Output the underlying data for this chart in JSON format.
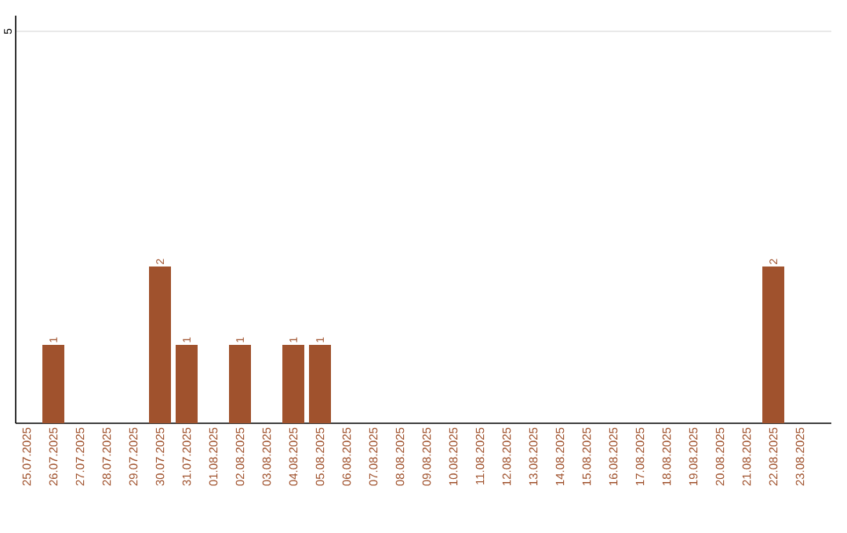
{
  "chart_data": {
    "type": "bar",
    "categories": [
      "25.07.2025",
      "26.07.2025",
      "27.07.2025",
      "28.07.2025",
      "29.07.2025",
      "30.07.2025",
      "31.07.2025",
      "01.08.2025",
      "02.08.2025",
      "03.08.2025",
      "04.08.2025",
      "05.08.2025",
      "06.08.2025",
      "07.08.2025",
      "08.08.2025",
      "09.08.2025",
      "10.08.2025",
      "11.08.2025",
      "12.08.2025",
      "13.08.2025",
      "14.08.2025",
      "15.08.2025",
      "16.08.2025",
      "17.08.2025",
      "18.08.2025",
      "19.08.2025",
      "20.08.2025",
      "21.08.2025",
      "22.08.2025",
      "23.08.2025"
    ],
    "values": [
      0,
      1,
      0,
      0,
      0,
      2,
      1,
      0,
      1,
      0,
      1,
      1,
      0,
      0,
      0,
      0,
      0,
      0,
      0,
      0,
      0,
      0,
      0,
      0,
      0,
      0,
      0,
      0,
      2,
      0
    ],
    "value_labels": [
      null,
      "1",
      null,
      null,
      null,
      "2",
      "1",
      null,
      "1",
      null,
      "1",
      "1",
      null,
      null,
      null,
      null,
      null,
      null,
      null,
      null,
      null,
      null,
      null,
      null,
      null,
      null,
      null,
      null,
      "2",
      null
    ],
    "color": "#a0522d",
    "ylim": [
      0,
      5.2
    ],
    "yticks": [
      5
    ],
    "grid": "y"
  }
}
